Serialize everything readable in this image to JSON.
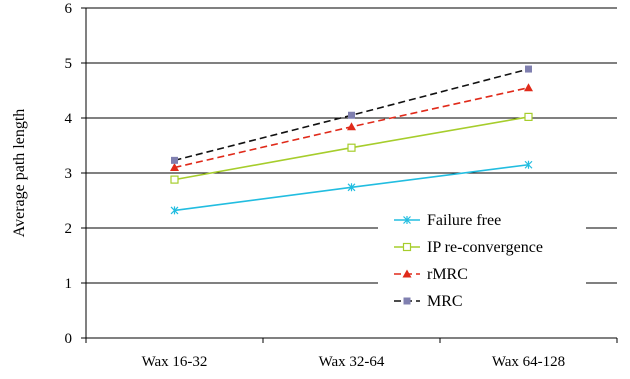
{
  "chart_data": {
    "type": "line",
    "title": "",
    "xlabel": "",
    "ylabel": "Average path length",
    "categories": [
      "Wax 16-32",
      "Wax 32-64",
      "Wax 64-128"
    ],
    "ylim": [
      0,
      6
    ],
    "yticks": [
      "0",
      "1",
      "2",
      "3",
      "4",
      "5",
      "6"
    ],
    "grid": "horizontal",
    "legend_position": "bottom-right",
    "series": [
      {
        "name": "Failure free",
        "values": [
          2.32,
          2.74,
          3.15
        ],
        "color": "#22bde0",
        "marker": "x",
        "dash": "solid"
      },
      {
        "name": "IP re-convergence",
        "values": [
          2.88,
          3.46,
          4.02
        ],
        "color": "#a6cd2c",
        "marker": "square-open",
        "dash": "solid"
      },
      {
        "name": "rMRC",
        "values": [
          3.1,
          3.84,
          4.55
        ],
        "color": "#e02a1a",
        "marker": "triangle",
        "dash": "dashed"
      },
      {
        "name": "MRC",
        "values": [
          3.23,
          4.05,
          4.89
        ],
        "color": "#111111",
        "marker": "square",
        "marker_color": "#8080b0",
        "dash": "dashed"
      }
    ]
  }
}
